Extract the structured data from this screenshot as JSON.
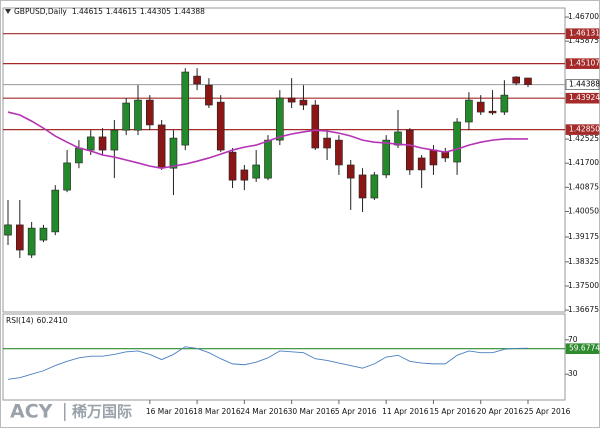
{
  "chart_data": {
    "type": "candlestick",
    "title": "GBPUSD,Daily",
    "categories": [
      null,
      null,
      null,
      null,
      null,
      null,
      null,
      null,
      null,
      null,
      null,
      null,
      "16 Mar 2016",
      null,
      null,
      null,
      "18 Mar 2016",
      null,
      null,
      null,
      "24 Mar 2016",
      null,
      null,
      null,
      "30 Mar 2016",
      null,
      null,
      null,
      "5 Apr 2016",
      null,
      null,
      null,
      "11 Apr 2016",
      null,
      null,
      null,
      "15 Apr 2016",
      null,
      null,
      null,
      "20 Apr 2016",
      null,
      null,
      null,
      "25 Apr 2016"
    ],
    "open": [
      1.3924,
      1.3959,
      1.3856,
      1.3907,
      1.3935,
      1.4078,
      1.4171,
      1.4215,
      1.426,
      1.4215,
      1.4283,
      1.4283,
      1.4386,
      1.4301,
      1.4153,
      1.4232,
      1.4468,
      1.4437,
      1.4379,
      1.4208,
      1.4147,
      1.4119,
      1.4119,
      1.4249,
      1.4393,
      1.4386,
      1.4369,
      1.4256,
      1.4249,
      1.4164,
      1.413,
      1.4051,
      1.413,
      1.4232,
      1.4283,
      1.4188,
      1.4215,
      1.4208,
      1.4174,
      1.4311,
      1.4379,
      1.4348,
      1.4345,
      1.4465,
      1.44615
    ],
    "high": [
      1.4044,
      1.4044,
      1.3969,
      1.3959,
      1.4095,
      1.4215,
      1.4249,
      1.4283,
      1.429,
      1.4318,
      1.4393,
      1.4437,
      1.4403,
      1.4318,
      1.4283,
      1.4495,
      1.4495,
      1.4461,
      1.4403,
      1.4222,
      1.4164,
      1.4215,
      1.4266,
      1.442,
      1.4461,
      1.4437,
      1.4386,
      1.4283,
      1.4266,
      1.4181,
      1.4153,
      1.414,
      1.4266,
      1.4352,
      1.429,
      1.4198,
      1.4232,
      1.4222,
      1.4324,
      1.4413,
      1.4403,
      1.442,
      1.4454,
      1.4468,
      1.44615
    ],
    "low": [
      1.389,
      1.3846,
      1.3846,
      1.39,
      1.3924,
      1.4071,
      1.4153,
      1.4198,
      1.4198,
      1.4119,
      1.4266,
      1.4266,
      1.4283,
      1.4147,
      1.4061,
      1.4215,
      1.442,
      1.4359,
      1.4208,
      1.4085,
      1.4078,
      1.4106,
      1.4112,
      1.4232,
      1.4359,
      1.4352,
      1.4215,
      1.4181,
      1.413,
      1.401,
      1.4003,
      1.4044,
      1.4119,
      1.4222,
      1.413,
      1.4085,
      1.413,
      1.4174,
      1.413,
      1.4283,
      1.4335,
      1.4335,
      1.4335,
      1.4437,
      1.44305
    ],
    "close": [
      1.3959,
      1.3873,
      1.3948,
      1.3948,
      1.4078,
      1.4171,
      1.4222,
      1.426,
      1.4215,
      1.4283,
      1.4376,
      1.4386,
      1.4301,
      1.4153,
      1.4256,
      1.4482,
      1.4441,
      1.4369,
      1.4215,
      1.4112,
      1.4112,
      1.4164,
      1.4249,
      1.4393,
      1.4379,
      1.4369,
      1.4222,
      1.4222,
      1.4164,
      1.4119,
      1.4051,
      1.413,
      1.4249,
      1.4277,
      1.4147,
      1.4147,
      1.4164,
      1.4188,
      1.4311,
      1.4386,
      1.4345,
      1.4342,
      1.4403,
      1.4444,
      1.44388
    ],
    "up_color": "#23892a",
    "down_color": "#8b1616",
    "ma": {
      "color": "#b534b5",
      "values": [
        1.4345,
        1.4335,
        1.4314,
        1.429,
        1.4263,
        1.4242,
        1.4222,
        1.4212,
        1.4198,
        1.4191,
        1.4181,
        1.4171,
        1.416,
        1.4153,
        1.416,
        1.4167,
        1.4177,
        1.4188,
        1.4201,
        1.4215,
        1.4225,
        1.4232,
        1.4246,
        1.426,
        1.427,
        1.4277,
        1.4283,
        1.428,
        1.4273,
        1.4263,
        1.4249,
        1.4242,
        1.4239,
        1.4235,
        1.4232,
        1.4222,
        1.4215,
        1.4208,
        1.4218,
        1.4232,
        1.4242,
        1.4249,
        1.4253,
        1.4253,
        1.4253
      ]
    },
    "ylim": [
      1.3661,
      1.4701
    ],
    "yticks": [
      {
        "value": 1.467,
        "label": "1.46700"
      },
      1.45875,
      1.42525,
      {
        "value": 1.417,
        "label": "1.41700"
      },
      1.40875,
      {
        "value": 1.4005,
        "label": "1.40050"
      },
      1.39175,
      1.38325,
      {
        "value": 1.375,
        "label": "1.37500"
      },
      1.36675
    ],
    "levels": [
      1.46131,
      1.45107,
      1.43924,
      {
        "value": 1.4285,
        "label": "1.42850"
      }
    ],
    "level_color": "#a52a2a",
    "rsi": {
      "name": "RSI(14)",
      "color": "#4a7fc0",
      "values": [
        24,
        26,
        30,
        34,
        40,
        45,
        49,
        51,
        51,
        53,
        56,
        57,
        53,
        47,
        53,
        62,
        60,
        55,
        48,
        42,
        41,
        44,
        49,
        57,
        56,
        55,
        48,
        46,
        43,
        40,
        37,
        42,
        50,
        52,
        45,
        43,
        42,
        42,
        52,
        57,
        55,
        55,
        59,
        60,
        60.241
      ],
      "value_labels": [
        null,
        null,
        null,
        null,
        null,
        null,
        null,
        null,
        null,
        null,
        null,
        null,
        null,
        null,
        null,
        null,
        null,
        null,
        null,
        null,
        null,
        null,
        null,
        null,
        null,
        null,
        null,
        null,
        null,
        null,
        null,
        null,
        null,
        null,
        null,
        null,
        null,
        null,
        null,
        null,
        null,
        null,
        null,
        null,
        "60.2410"
      ],
      "ylim": [
        0,
        100
      ],
      "yticks": [
        70,
        30
      ],
      "levels": [
        59.6774
      ],
      "level_color": "#2e8b2e"
    }
  },
  "brand": [
    "ACY",
    "稀万国际"
  ]
}
